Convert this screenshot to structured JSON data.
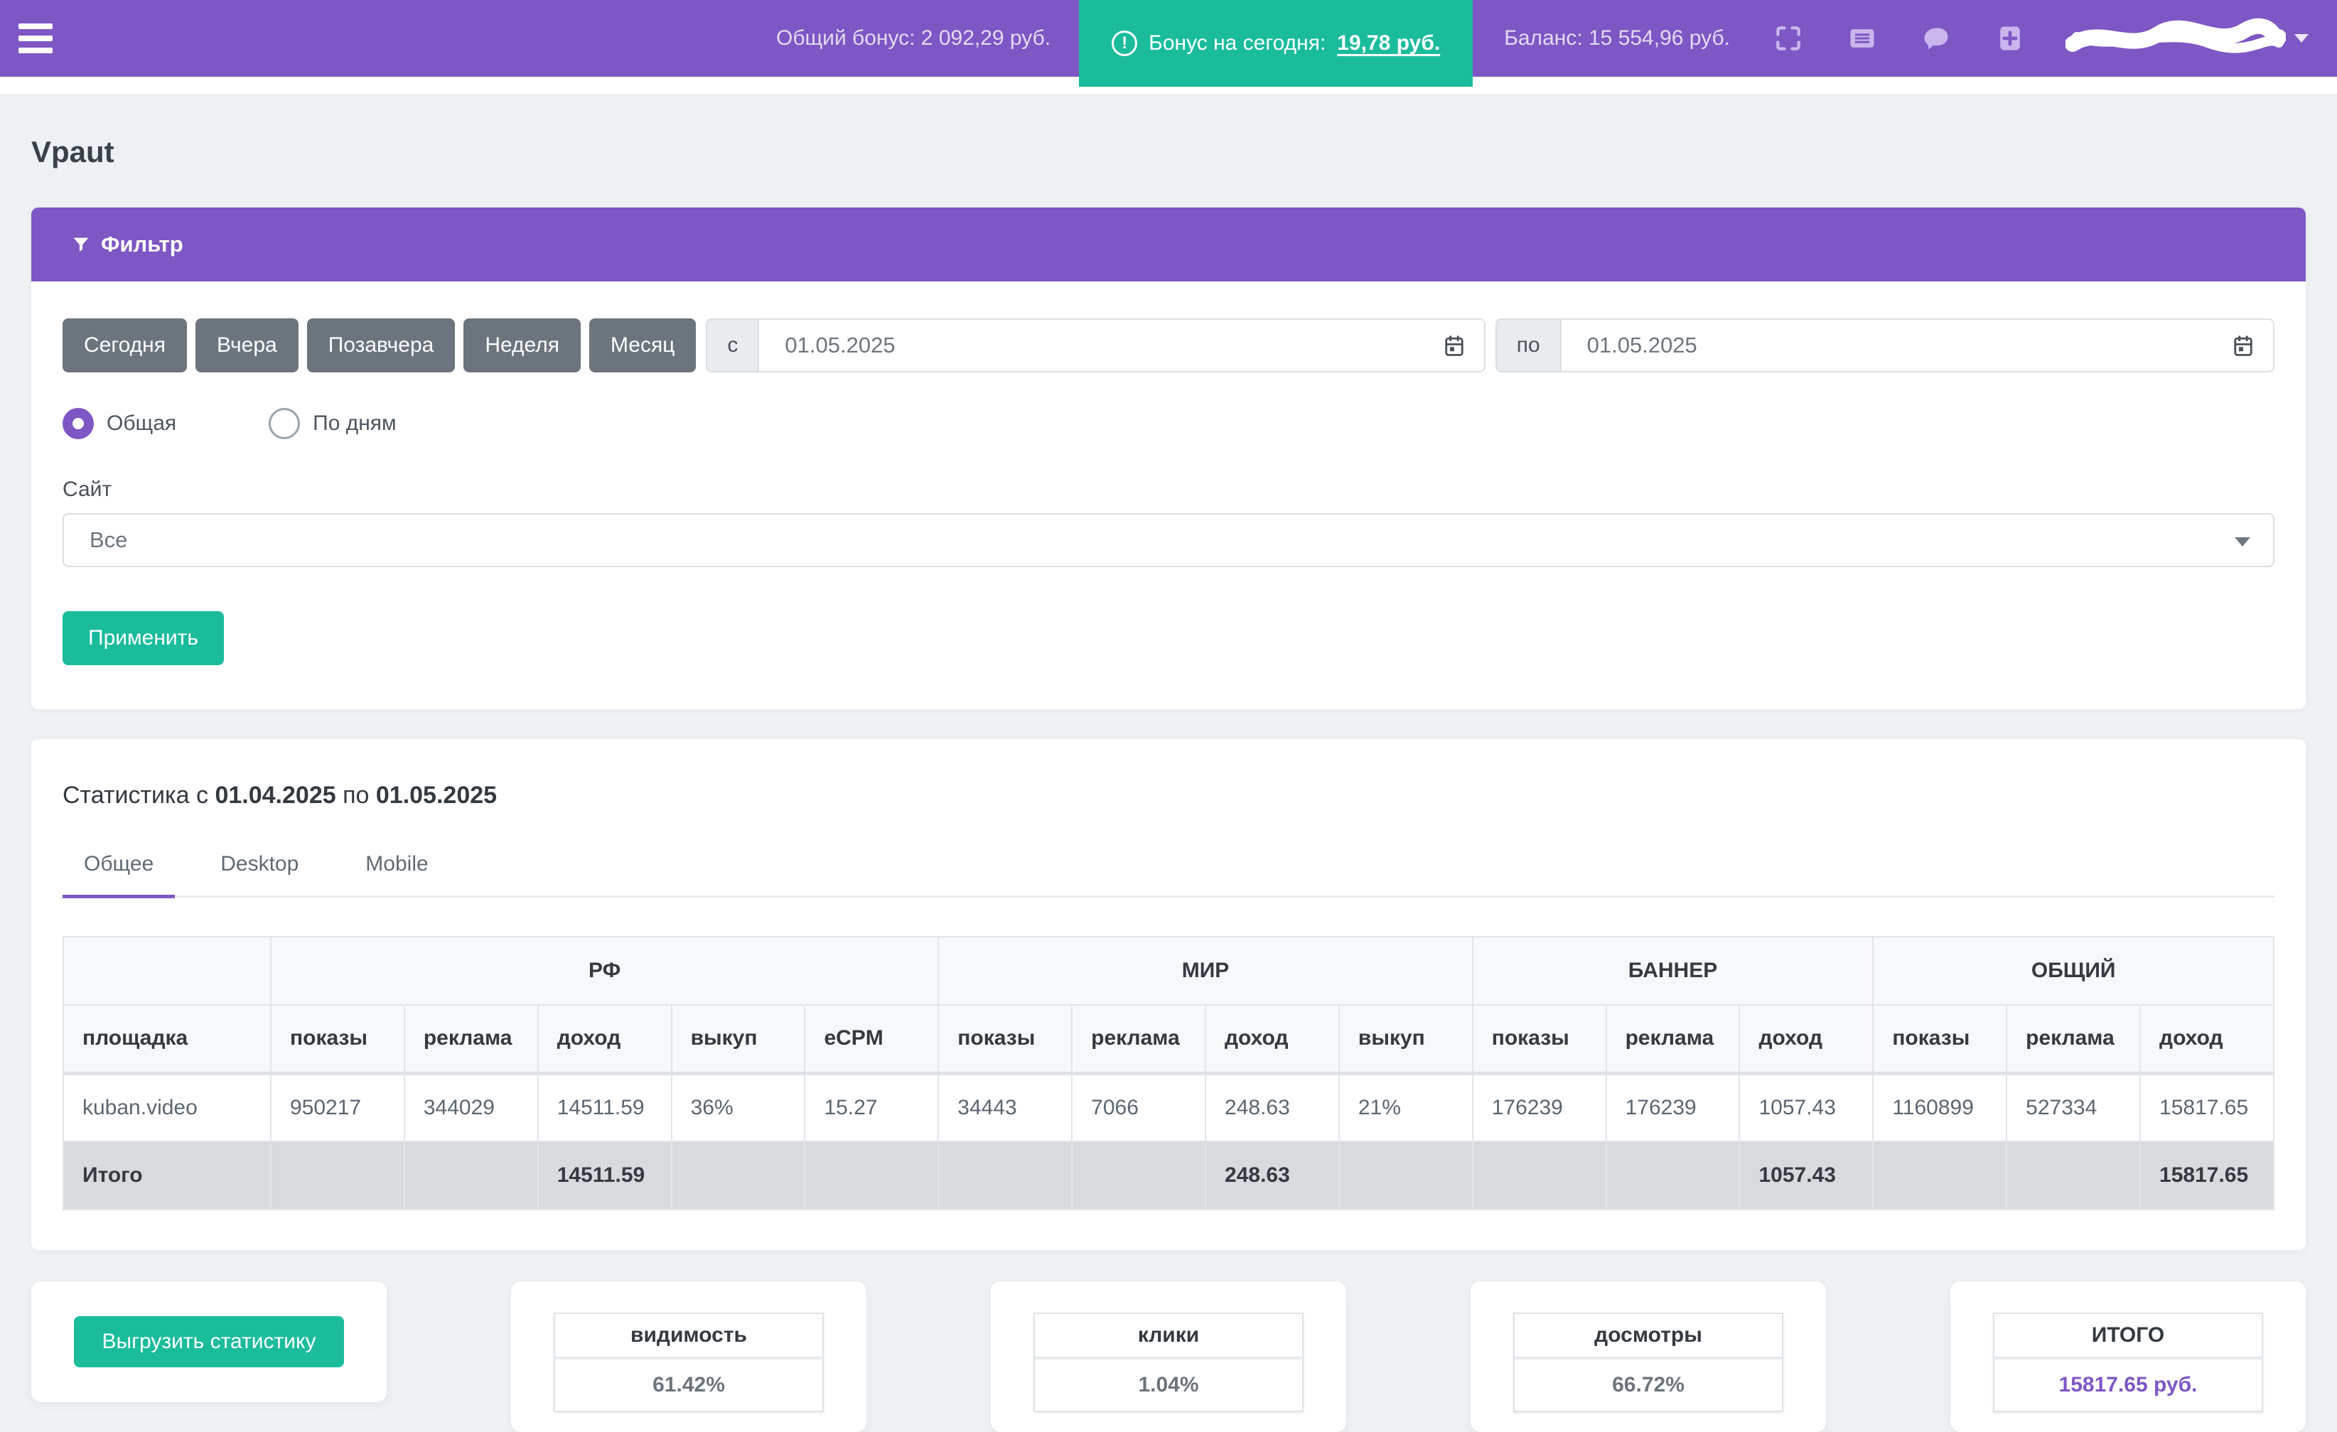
{
  "theme": {
    "accent_purple": "#7e57c5",
    "accent_teal": "#1abc9c",
    "button_gray": "#6c757d"
  },
  "navbar": {
    "total_bonus": "Общий бонус: 2 092,29 руб.",
    "today_bonus_prefix": "Бонус на сегодня:",
    "today_bonus_value": "19,78 руб.",
    "balance": "Баланс: 15 554,96 руб.",
    "icons": [
      "fullscreen-icon",
      "billing-icon",
      "chat-icon",
      "add-icon"
    ],
    "user_email_state": "redacted-scribble"
  },
  "page": {
    "title": "Vpaut"
  },
  "filter": {
    "header": "Фильтр",
    "presets": [
      "Сегодня",
      "Вчера",
      "Позавчера",
      "Неделя",
      "Месяц"
    ],
    "from_label": "с",
    "from_value": "01.05.2025",
    "to_label": "по",
    "to_value": "01.05.2025",
    "radios": [
      {
        "label": "Общая",
        "checked": true
      },
      {
        "label": "По дням",
        "checked": false
      }
    ],
    "site_label": "Сайт",
    "site_value": "Все",
    "apply_label": "Применить"
  },
  "stats": {
    "heading_prefix": "Статистика с",
    "date_from": "01.04.2025",
    "heading_middle": "по",
    "date_to": "01.05.2025",
    "tabs": [
      "Общее",
      "Desktop",
      "Mobile"
    ],
    "active_tab": "Общее",
    "table": {
      "groups": [
        {
          "label": "РФ",
          "span": 5
        },
        {
          "label": "МИР",
          "span": 4
        },
        {
          "label": "БАННЕР",
          "span": 3
        },
        {
          "label": "ОБЩИЙ",
          "span": 3
        }
      ],
      "columns": [
        "площадка",
        "показы",
        "реклама",
        "доход",
        "выкуп",
        "eCPM",
        "показы",
        "реклама",
        "доход",
        "выкуп",
        "показы",
        "реклама",
        "доход",
        "показы",
        "реклама",
        "доход"
      ],
      "rows": [
        [
          "kuban.video",
          "950217",
          "344029",
          "14511.59",
          "36%",
          "15.27",
          "34443",
          "7066",
          "248.63",
          "21%",
          "176239",
          "176239",
          "1057.43",
          "1160899",
          "527334",
          "15817.65"
        ]
      ],
      "total_row": [
        "Итого",
        "",
        "",
        "14511.59",
        "",
        "",
        "",
        "",
        "248.63",
        "",
        "",
        "",
        "1057.43",
        "",
        "",
        "15817.65"
      ]
    }
  },
  "footer": {
    "export_label": "Выгрузить статистику",
    "cards": [
      {
        "title": "видимость",
        "value": "61.42%",
        "accent": false
      },
      {
        "title": "клики",
        "value": "1.04%",
        "accent": false
      },
      {
        "title": "досмотры",
        "value": "66.72%",
        "accent": false
      },
      {
        "title": "ИТОГО",
        "value": "15817.65 руб.",
        "accent": true
      }
    ]
  }
}
